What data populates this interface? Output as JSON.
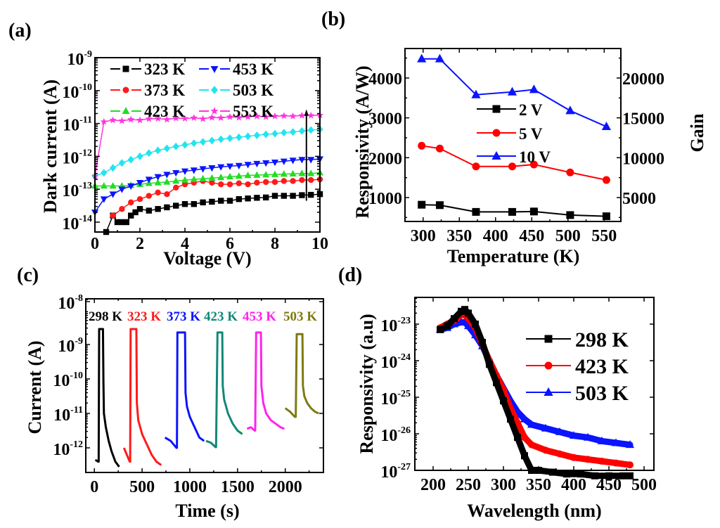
{
  "chart_data": [
    {
      "id": "a",
      "panel_label": "(a)",
      "type": "scatter",
      "title": "",
      "xlabel": "Voltage (V)",
      "ylabel": "Dark current (A)",
      "xscale": "linear",
      "yscale": "log",
      "xlim": [
        0,
        10
      ],
      "ylim_exp": [
        -14.3,
        -9
      ],
      "xticks": [
        0,
        2,
        4,
        6,
        8,
        10
      ],
      "yticks_exp": [
        -14,
        -13,
        -12,
        -11,
        -10,
        -9
      ],
      "legend_position": "top-left",
      "legend_columns": 2,
      "series": [
        {
          "name": "323 K",
          "color": "#000000",
          "marker": "square",
          "x": [
            0.5,
            0.8,
            1.0,
            1.2,
            1.4,
            1.6,
            1.8,
            2.0,
            2.4,
            2.8,
            3.2,
            3.6,
            4.0,
            4.4,
            4.8,
            5.2,
            5.6,
            6.0,
            6.4,
            6.8,
            7.2,
            7.6,
            8.0,
            8.4,
            8.8,
            9.2,
            9.6,
            10.0
          ],
          "y_exp": [
            -14.3,
            -13.8,
            -14.0,
            -14.0,
            -14.0,
            -13.8,
            -13.7,
            -13.6,
            -13.65,
            -13.6,
            -13.55,
            -13.5,
            -13.45,
            -13.45,
            -13.4,
            -13.38,
            -13.35,
            -13.35,
            -13.3,
            -13.28,
            -13.26,
            -13.25,
            -13.2,
            -13.2,
            -13.2,
            -13.18,
            -13.17,
            -13.15
          ]
        },
        {
          "name": "373 K",
          "color": "#ff1a1a",
          "marker": "circle",
          "x": [
            0.8,
            1.2,
            1.6,
            2.0,
            2.4,
            2.8,
            3.2,
            3.6,
            4.0,
            4.4,
            4.8,
            5.2,
            5.6,
            6.0,
            6.4,
            6.8,
            7.2,
            7.6,
            8.0,
            8.4,
            8.8,
            9.2,
            9.6,
            10.0
          ],
          "y_exp": [
            -13.8,
            -13.6,
            -13.4,
            -13.3,
            -13.2,
            -13.1,
            -13.15,
            -12.95,
            -12.85,
            -12.8,
            -12.75,
            -12.8,
            -12.85,
            -12.85,
            -12.82,
            -12.85,
            -12.8,
            -12.78,
            -12.78,
            -12.75,
            -12.75,
            -12.72,
            -12.72,
            -12.7
          ]
        },
        {
          "name": "423 K",
          "color": "#22dd22",
          "marker": "triangle-up",
          "x": [
            0.0,
            0.4,
            0.8,
            1.2,
            1.6,
            2.0,
            2.4,
            2.8,
            3.2,
            3.6,
            4.0,
            4.4,
            4.8,
            5.2,
            5.6,
            6.0,
            6.4,
            6.8,
            7.2,
            7.6,
            8.0,
            8.4,
            8.8,
            9.2,
            9.6,
            10.0
          ],
          "y_exp": [
            -12.9,
            -12.9,
            -12.9,
            -12.9,
            -12.88,
            -12.85,
            -12.82,
            -12.8,
            -12.78,
            -12.75,
            -12.72,
            -12.7,
            -12.68,
            -12.66,
            -12.64,
            -12.62,
            -12.6,
            -12.58,
            -12.57,
            -12.56,
            -12.55,
            -12.54,
            -12.53,
            -12.52,
            -12.52,
            -12.5
          ]
        },
        {
          "name": "453 K",
          "color": "#0a14ff",
          "marker": "triangle-down",
          "x": [
            0.0,
            0.4,
            0.8,
            1.2,
            1.6,
            2.0,
            2.4,
            2.8,
            3.2,
            3.6,
            4.0,
            4.4,
            4.8,
            5.2,
            5.6,
            6.0,
            6.4,
            6.8,
            7.2,
            7.6,
            8.0,
            8.4,
            8.8,
            9.2,
            9.6,
            10.0
          ],
          "y_exp": [
            -13.7,
            -13.3,
            -13.15,
            -13.0,
            -12.9,
            -12.8,
            -12.7,
            -12.62,
            -12.55,
            -12.5,
            -12.45,
            -12.42,
            -12.38,
            -12.35,
            -12.32,
            -12.3,
            -12.28,
            -12.25,
            -12.22,
            -12.2,
            -12.18,
            -12.15,
            -12.12,
            -12.1,
            -12.1,
            -12.08
          ]
        },
        {
          "name": "503 K",
          "color": "#22e4ee",
          "marker": "diamond",
          "x": [
            0.0,
            0.4,
            0.8,
            1.2,
            1.6,
            2.0,
            2.4,
            2.8,
            3.2,
            3.6,
            4.0,
            4.4,
            4.8,
            5.2,
            5.6,
            6.0,
            6.4,
            6.8,
            7.2,
            7.6,
            8.0,
            8.4,
            8.8,
            9.2,
            9.6,
            10.0
          ],
          "y_exp": [
            -12.6,
            -12.5,
            -12.35,
            -12.2,
            -12.1,
            -12.0,
            -11.9,
            -11.82,
            -11.76,
            -11.7,
            -11.65,
            -11.6,
            -11.56,
            -11.52,
            -11.48,
            -11.45,
            -11.42,
            -11.39,
            -11.36,
            -11.33,
            -11.31,
            -11.28,
            -11.26,
            -11.23,
            -11.2,
            -11.18
          ]
        },
        {
          "name": "553 K",
          "color": "#ff33dd",
          "marker": "star",
          "x": [
            0.0,
            0.4,
            0.8,
            1.2,
            1.6,
            2.0,
            2.4,
            2.8,
            3.2,
            3.6,
            4.0,
            4.4,
            4.8,
            5.2,
            5.6,
            6.0,
            6.4,
            6.8,
            7.2,
            7.6,
            8.0,
            8.4,
            8.8,
            9.2,
            9.6,
            10.0
          ],
          "y_exp": [
            -12.6,
            -10.95,
            -10.9,
            -10.92,
            -10.88,
            -10.9,
            -10.86,
            -10.85,
            -10.88,
            -10.84,
            -10.85,
            -10.83,
            -10.86,
            -10.82,
            -10.83,
            -10.8,
            -10.82,
            -10.8,
            -10.78,
            -10.8,
            -10.78,
            -10.77,
            -10.78,
            -10.76,
            -10.76,
            -10.75
          ]
        }
      ],
      "annotation": "vertical arrow near 9.4 V spanning ~1e-13.2 to ~1e-10.8"
    },
    {
      "id": "b",
      "panel_label": "(b)",
      "type": "line",
      "title": "",
      "xlabel": "Temperature (K)",
      "ylabel": "Responsivity (A/W)",
      "y2label": "Gain",
      "xlim": [
        275,
        573
      ],
      "ylim": [
        400,
        4740
      ],
      "y2lim": [
        2000,
        23700
      ],
      "xticks": [
        300,
        350,
        400,
        450,
        500,
        550
      ],
      "yticks": [
        1000,
        2000,
        3000,
        4000
      ],
      "y2ticks": [
        5000,
        10000,
        15000,
        20000
      ],
      "legend_position": "center",
      "x": [
        298,
        323,
        373,
        423,
        453,
        503,
        553
      ],
      "series": [
        {
          "name": "2 V",
          "color": "#000000",
          "marker": "square",
          "values": [
            820,
            810,
            640,
            640,
            650,
            560,
            530
          ]
        },
        {
          "name": "5 V",
          "color": "#ff0000",
          "marker": "circle",
          "values": [
            2300,
            2230,
            1780,
            1780,
            1830,
            1630,
            1440
          ]
        },
        {
          "name": "10 V",
          "color": "#0a14ff",
          "marker": "triangle-up",
          "values": [
            4480,
            4480,
            3580,
            3650,
            3710,
            3180,
            2780
          ]
        }
      ]
    },
    {
      "id": "c",
      "panel_label": "(c)",
      "type": "line",
      "title": "",
      "xlabel": "Time (s)",
      "ylabel": "Current (A)",
      "xscale": "linear",
      "yscale": "log",
      "xlim": [
        -90,
        2400
      ],
      "ylim_exp": [
        -12.7,
        -8
      ],
      "xticks": [
        0,
        500,
        1000,
        1500,
        2000
      ],
      "yticks_exp": [
        -12,
        -11,
        -10,
        -9,
        -8
      ],
      "series": [
        {
          "name": "298 K",
          "color": "#000000",
          "label": "298 K",
          "t": [
            10,
            40,
            45,
            50,
            90,
            95,
            100,
            120,
            150,
            180,
            220,
            260
          ],
          "y_exp": [
            -12.35,
            -12.4,
            -12.4,
            -8.55,
            -8.55,
            -10.1,
            -11.0,
            -11.4,
            -11.8,
            -12.1,
            -12.4,
            -12.55
          ]
        },
        {
          "name": "323 K",
          "color": "#ff1a1a",
          "label": "323 K",
          "t": [
            310,
            370,
            375,
            380,
            440,
            445,
            460,
            500,
            550,
            600,
            650,
            700
          ],
          "y_exp": [
            -12.0,
            -12.4,
            -12.4,
            -8.55,
            -8.55,
            -10.7,
            -11.2,
            -11.6,
            -11.9,
            -12.2,
            -12.4,
            -12.5
          ]
        },
        {
          "name": "373 K",
          "color": "#0a14ff",
          "label": "373 K",
          "t": [
            740,
            800,
            860,
            865,
            870,
            950,
            955,
            970,
            1000,
            1050,
            1100,
            1150
          ],
          "y_exp": [
            -11.7,
            -11.8,
            -12.0,
            -12.0,
            -8.65,
            -8.65,
            -10.4,
            -10.8,
            -11.1,
            -11.4,
            -11.7,
            -11.8
          ]
        },
        {
          "name": "423 K",
          "color": "#118877",
          "label": "423 K",
          "t": [
            1170,
            1220,
            1270,
            1275,
            1290,
            1340,
            1345,
            1360,
            1400,
            1450,
            1500,
            1550
          ],
          "y_exp": [
            -11.8,
            -11.85,
            -11.98,
            -11.98,
            -8.65,
            -8.65,
            -10.2,
            -10.6,
            -11.0,
            -11.3,
            -11.5,
            -11.6
          ]
        },
        {
          "name": "453 K",
          "color": "#ff22ee",
          "label": "453 K",
          "t": [
            1600,
            1640,
            1680,
            1685,
            1695,
            1745,
            1750,
            1770,
            1800,
            1850,
            1900,
            1950,
            1990
          ],
          "y_exp": [
            -11.45,
            -11.4,
            -11.5,
            -11.5,
            -8.65,
            -8.65,
            -10.2,
            -10.7,
            -11.0,
            -11.2,
            -11.3,
            -11.4,
            -11.45
          ]
        },
        {
          "name": "503 K",
          "color": "#7e7a12",
          "label": "503 K",
          "t": [
            2000,
            2050,
            2100,
            2110,
            2120,
            2180,
            2185,
            2200,
            2230,
            2270,
            2310,
            2350
          ],
          "y_exp": [
            -10.85,
            -10.95,
            -11.1,
            -11.1,
            -8.7,
            -8.7,
            -10.2,
            -10.5,
            -10.7,
            -10.85,
            -10.95,
            -11.0
          ]
        }
      ]
    },
    {
      "id": "d",
      "panel_label": "(d)",
      "type": "line",
      "title": "",
      "xlabel": "Wavelength (nm)",
      "ylabel": "Responsivity (a.u)",
      "xscale": "linear",
      "yscale": "log",
      "xlim": [
        174,
        523
      ],
      "ylim_exp": [
        -27,
        -22.2
      ],
      "xticks": [
        200,
        250,
        300,
        350,
        400,
        450,
        500
      ],
      "yticks_exp": [
        -27,
        -26,
        -25,
        -24,
        -23
      ],
      "legend_position": "right",
      "series": [
        {
          "name": "298 K",
          "color": "#000000",
          "marker": "square",
          "x": [
            210,
            220,
            230,
            240,
            245,
            250,
            260,
            270,
            280,
            290,
            300,
            310,
            320,
            330,
            340,
            350,
            370,
            390,
            410,
            430,
            450,
            470,
            480
          ],
          "y_exp": [
            -23.15,
            -23.05,
            -22.85,
            -22.65,
            -22.6,
            -22.7,
            -23.0,
            -23.5,
            -24.1,
            -24.6,
            -25.1,
            -25.6,
            -26.1,
            -26.6,
            -27.0,
            -27.0,
            -27.05,
            -27.1,
            -27.1,
            -27.15,
            -27.15,
            -27.15,
            -27.15
          ]
        },
        {
          "name": "423 K",
          "color": "#ff0000",
          "marker": "circle",
          "x": [
            210,
            220,
            230,
            240,
            245,
            250,
            260,
            270,
            280,
            290,
            300,
            310,
            320,
            330,
            340,
            360,
            380,
            400,
            420,
            440,
            460,
            480
          ],
          "y_exp": [
            -23.1,
            -23.0,
            -22.9,
            -22.75,
            -22.75,
            -22.85,
            -23.1,
            -23.55,
            -24.0,
            -24.4,
            -24.8,
            -25.3,
            -25.7,
            -26.1,
            -26.3,
            -26.45,
            -26.55,
            -26.65,
            -26.7,
            -26.75,
            -26.8,
            -26.85
          ]
        },
        {
          "name": "503 K",
          "color": "#0a14ff",
          "marker": "triangle-up",
          "x": [
            210,
            220,
            230,
            240,
            245,
            250,
            260,
            270,
            280,
            290,
            300,
            310,
            320,
            330,
            340,
            360,
            380,
            400,
            420,
            440,
            460,
            480
          ],
          "y_exp": [
            -23.15,
            -23.1,
            -23.0,
            -22.95,
            -22.95,
            -23.05,
            -23.3,
            -23.6,
            -24.0,
            -24.4,
            -24.75,
            -25.1,
            -25.4,
            -25.6,
            -25.75,
            -25.85,
            -25.95,
            -26.05,
            -26.1,
            -26.2,
            -26.25,
            -26.3
          ]
        }
      ]
    }
  ]
}
